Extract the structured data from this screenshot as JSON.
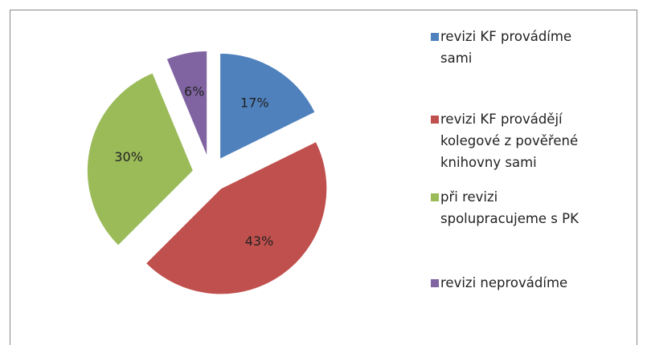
{
  "chart_data": {
    "type": "pie",
    "categories": [
      "revizi KF provádíme sami",
      "revizi KF provádějí kolegové z pověřené knihovny sami",
      "při revizi spolupracujeme s PK",
      "revizi neprovádíme"
    ],
    "values": [
      17,
      43,
      30,
      6
    ],
    "value_labels": [
      "17%",
      "43%",
      "30%",
      "6%"
    ],
    "colors": [
      "#4f81bd",
      "#c0504d",
      "#9bbb59",
      "#8064a2"
    ],
    "legend": "right"
  }
}
